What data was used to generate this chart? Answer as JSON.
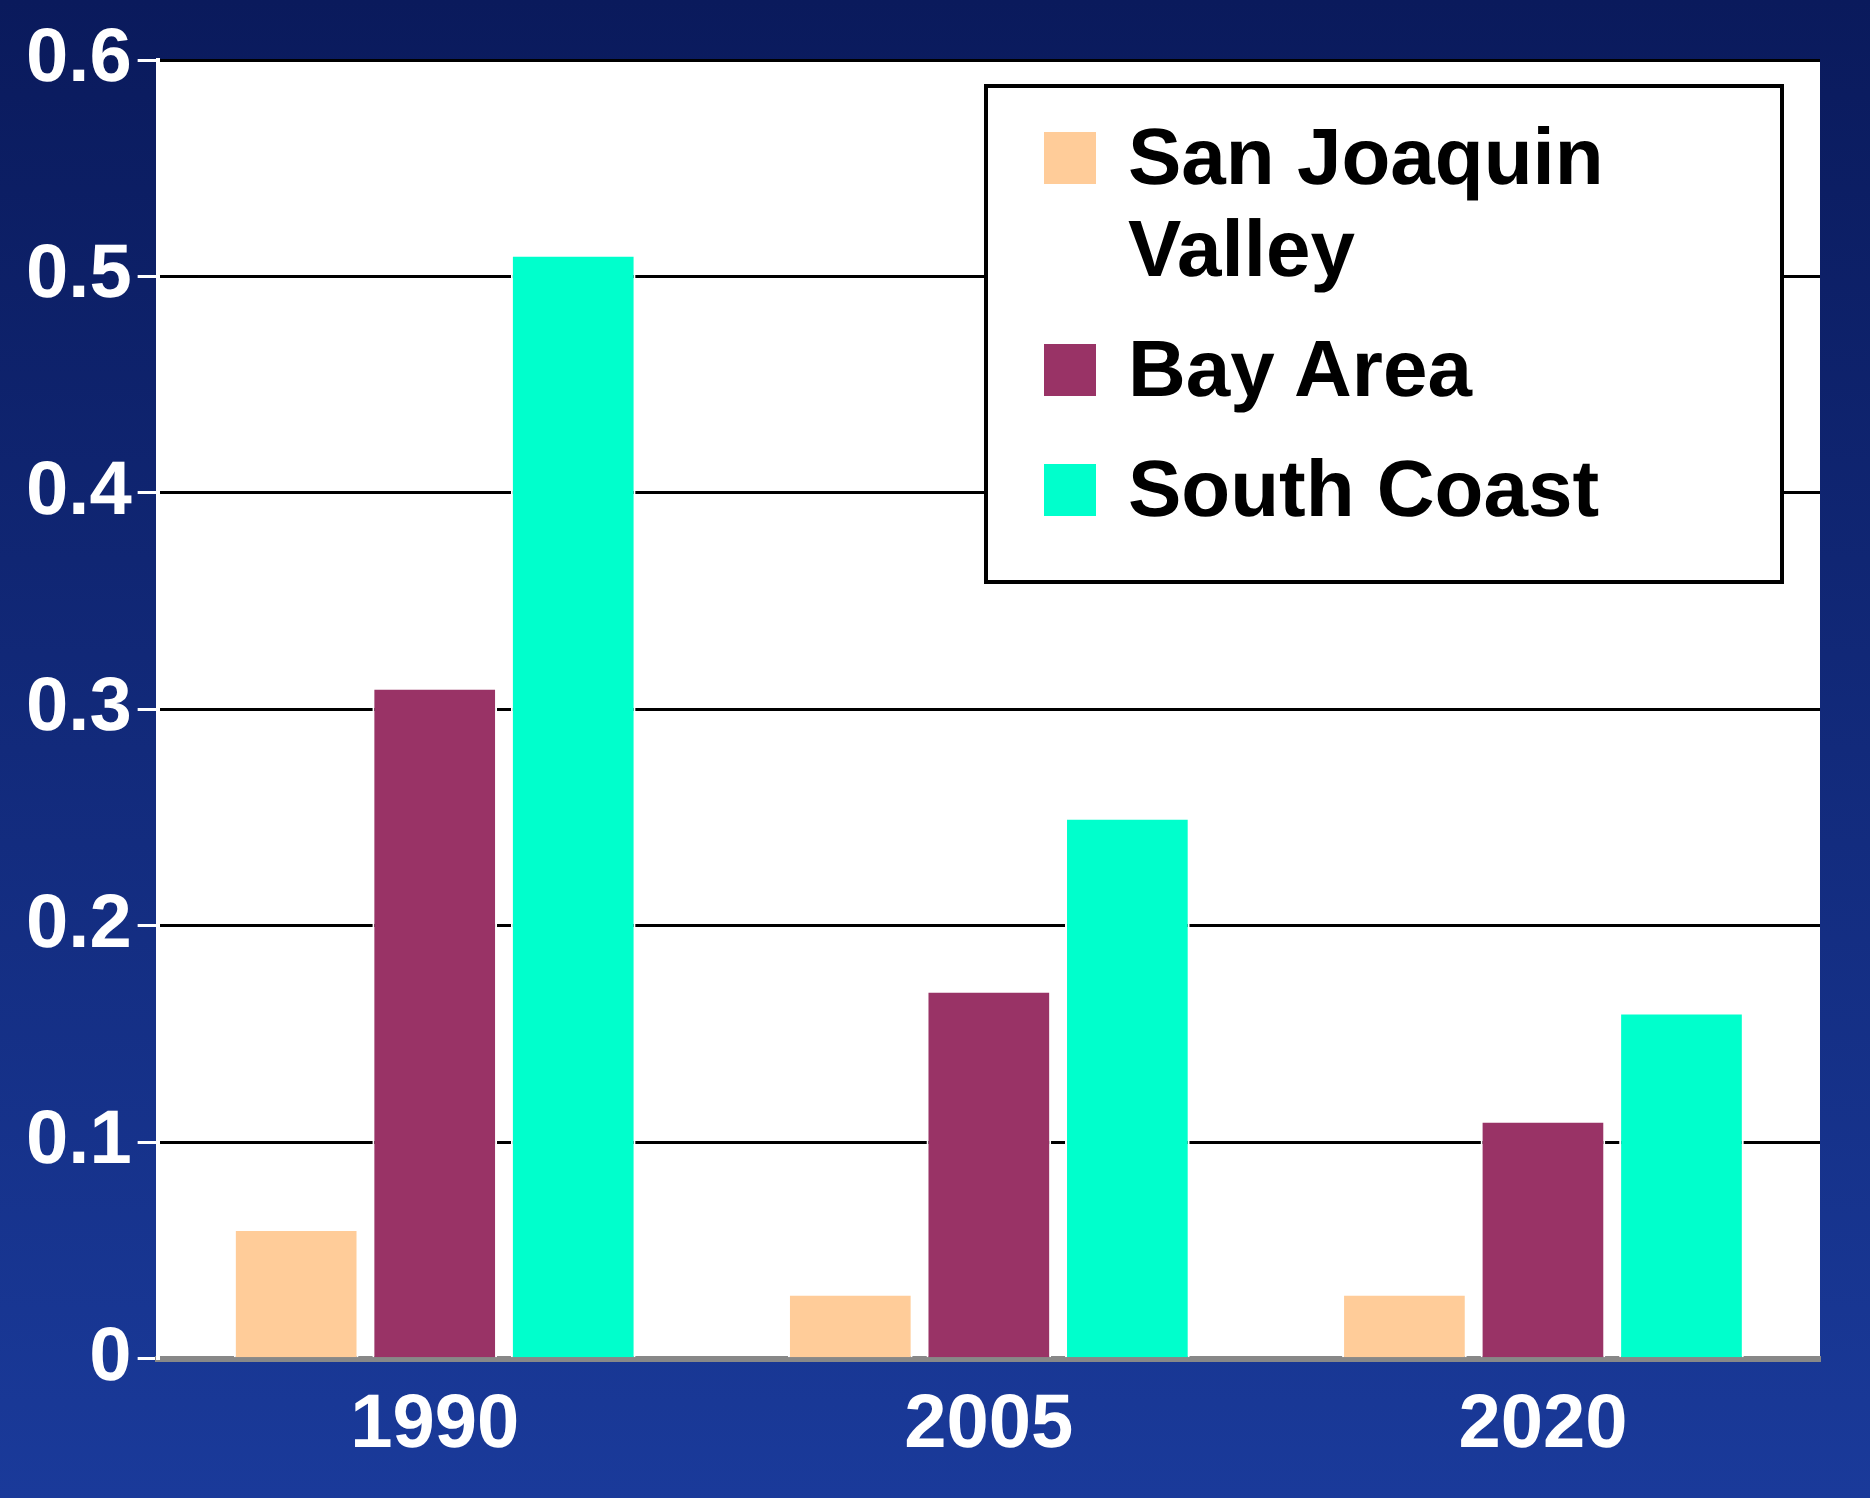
{
  "chart_data": {
    "type": "bar",
    "categories": [
      "1990",
      "2005",
      "2020"
    ],
    "series": [
      {
        "name": "San Joaquin Valley",
        "color": "#ffcc99",
        "values": [
          0.06,
          0.03,
          0.03
        ]
      },
      {
        "name": "Bay Area",
        "color": "#993366",
        "values": [
          0.31,
          0.17,
          0.11
        ]
      },
      {
        "name": "South Coast",
        "color": "#00ffcc",
        "values": [
          0.51,
          0.25,
          0.16
        ]
      }
    ],
    "ylim": [
      0,
      0.6
    ],
    "yticks": [
      0,
      0.1,
      0.2,
      0.3,
      0.4,
      0.5,
      0.6
    ],
    "grid": "y",
    "legend": "top right"
  }
}
